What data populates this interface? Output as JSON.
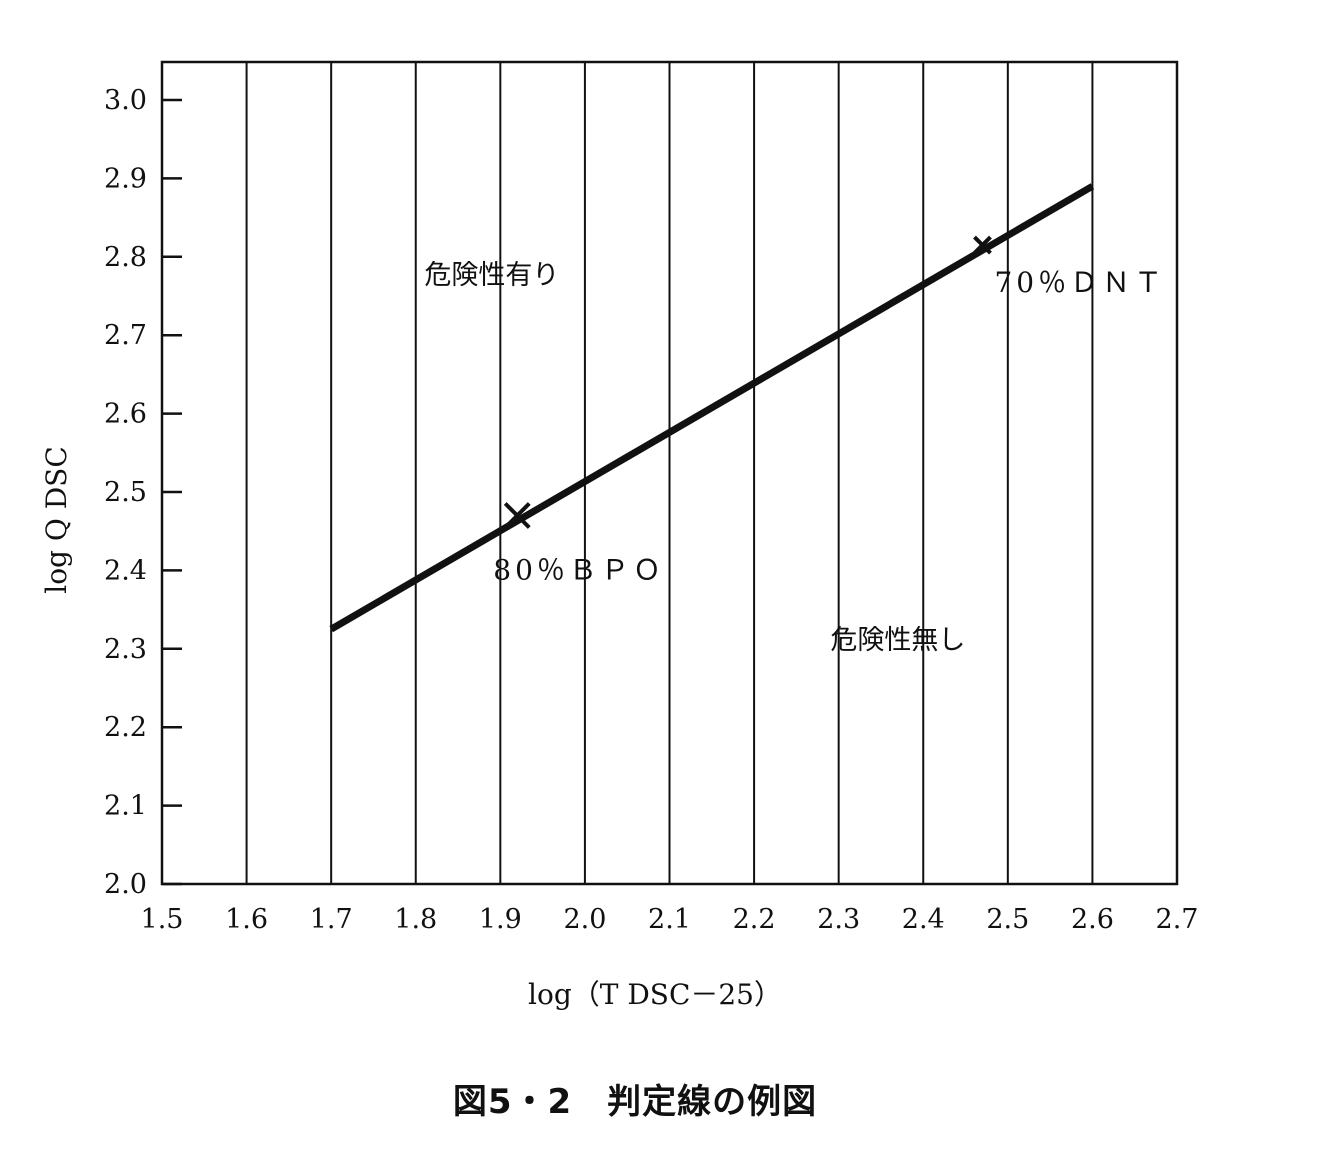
{
  "caption": "図5・2　判定線の例図",
  "chart_data": {
    "type": "line",
    "xlabel": "log（T DSC－25）",
    "ylabel": "log Q DSC",
    "xlim": [
      1.5,
      2.7
    ],
    "ylim": [
      2.0,
      3.0
    ],
    "x_ticks": [
      "1.5",
      "1.6",
      "1.7",
      "1.8",
      "1.9",
      "2.0",
      "2.1",
      "2.2",
      "2.3",
      "2.4",
      "2.5",
      "2.6",
      "2.7"
    ],
    "y_ticks": [
      "2.0",
      "2.1",
      "2.2",
      "2.3",
      "2.4",
      "2.5",
      "2.6",
      "2.7",
      "2.8",
      "2.9",
      "3.0"
    ],
    "vertical_grid": true,
    "series": [
      {
        "points": [
          [
            1.7,
            2.325
          ],
          [
            2.6,
            2.89
          ]
        ]
      }
    ],
    "markers": [
      {
        "x": 1.92,
        "y": 2.47,
        "label": "80％ＢＰＯ",
        "label_position": "below"
      },
      {
        "x": 2.47,
        "y": 2.815,
        "label": "70％ＤＮＴ",
        "label_position": "below-right"
      }
    ],
    "region_labels": [
      {
        "text": "危険性有り",
        "x": 1.89,
        "y": 2.765
      },
      {
        "text": "危険性無し",
        "x": 2.37,
        "y": 2.3
      }
    ],
    "colors": {
      "line": "#111111",
      "grid": "#111111",
      "background": "#ffffff"
    }
  }
}
